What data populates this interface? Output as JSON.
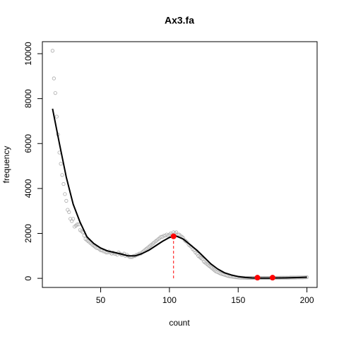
{
  "chart_data": {
    "type": "scatter",
    "title": "Ax3.fa",
    "xlabel": "count",
    "ylabel": "frequency",
    "xlim": [
      7.6,
      207.4
    ],
    "ylim": [
      -405,
      10535
    ],
    "xticks": [
      50,
      100,
      150,
      200
    ],
    "yticks": [
      0,
      2000,
      4000,
      6000,
      8000,
      10000
    ],
    "points": {
      "color": "#aaaaaa",
      "x": [
        15,
        16,
        17,
        18,
        19,
        20,
        21,
        22,
        23,
        24,
        25,
        26,
        27,
        28,
        29,
        30,
        31,
        32,
        33,
        34,
        35,
        36,
        37,
        38,
        39,
        40,
        41,
        42,
        43,
        44,
        45,
        46,
        47,
        48,
        49,
        50,
        51,
        52,
        53,
        54,
        55,
        56,
        57,
        58,
        59,
        60,
        61,
        62,
        63,
        64,
        65,
        66,
        67,
        68,
        69,
        70,
        71,
        72,
        73,
        74,
        75,
        76,
        77,
        78,
        79,
        80,
        81,
        82,
        83,
        84,
        85,
        86,
        87,
        88,
        89,
        90,
        91,
        92,
        93,
        94,
        95,
        96,
        97,
        98,
        99,
        100,
        101,
        102,
        103,
        104,
        105,
        106,
        107,
        108,
        109,
        110,
        111,
        112,
        113,
        114,
        115,
        116,
        117,
        118,
        119,
        120,
        121,
        122,
        123,
        124,
        125,
        126,
        127,
        128,
        129,
        130,
        131,
        132,
        133,
        134,
        135,
        136,
        137,
        138,
        139,
        140,
        141,
        142,
        143,
        144,
        145,
        146,
        147,
        148,
        149,
        150,
        151,
        152,
        153,
        154,
        155,
        156,
        157,
        158,
        159,
        160,
        161,
        162,
        163,
        164,
        165,
        166,
        167,
        168,
        169,
        170,
        171,
        172,
        173,
        174,
        175,
        176,
        177,
        178,
        179,
        180,
        181,
        182,
        183,
        184,
        185,
        186,
        187,
        188,
        189,
        190,
        191,
        192,
        193,
        194,
        195,
        196,
        197,
        198,
        199,
        200
      ],
      "y": [
        10130,
        8900,
        8250,
        7200,
        6400,
        5600,
        5100,
        4600,
        4200,
        3750,
        3450,
        3050,
        2950,
        2650,
        2550,
        2650,
        2300,
        2350,
        2400,
        2400,
        2150,
        2100,
        2050,
        1900,
        1750,
        1700,
        1650,
        1600,
        1550,
        1500,
        1450,
        1400,
        1350,
        1350,
        1300,
        1250,
        1250,
        1200,
        1200,
        1150,
        1150,
        1200,
        1150,
        1100,
        1150,
        1100,
        1100,
        1050,
        1150,
        1100,
        1050,
        1050,
        1100,
        1000,
        1050,
        1000,
        950,
        950,
        950,
        1000,
        1000,
        1050,
        1050,
        1100,
        1100,
        1150,
        1200,
        1250,
        1300,
        1350,
        1400,
        1450,
        1500,
        1550,
        1600,
        1650,
        1700,
        1750,
        1800,
        1850,
        1850,
        1900,
        1900,
        1950,
        1900,
        1950,
        2000,
        1950,
        2050,
        2000,
        2050,
        1950,
        1950,
        1900,
        1850,
        1800,
        1700,
        1650,
        1600,
        1500,
        1450,
        1400,
        1300,
        1250,
        1150,
        1100,
        1000,
        950,
        900,
        850,
        750,
        700,
        650,
        600,
        550,
        500,
        450,
        400,
        350,
        300,
        280,
        250,
        220,
        200,
        180,
        160,
        140,
        120,
        100,
        90,
        80,
        70,
        60,
        50,
        45,
        40,
        35,
        30,
        30,
        25,
        25,
        20,
        20,
        20,
        20,
        20,
        20,
        20,
        20,
        20,
        20,
        20,
        20,
        20,
        20,
        20,
        20,
        20,
        20,
        20,
        25,
        25,
        25,
        25,
        25,
        25,
        30,
        30,
        30,
        30,
        30,
        30,
        30,
        35,
        35,
        35,
        35,
        35,
        40,
        40,
        40,
        40,
        40,
        45,
        45,
        50
      ]
    },
    "curve": {
      "color": "#000000",
      "x": [
        15,
        20,
        25,
        30,
        35,
        40,
        45,
        50,
        55,
        60,
        65,
        70,
        75,
        80,
        85,
        90,
        95,
        100,
        103,
        105,
        110,
        115,
        120,
        125,
        130,
        135,
        140,
        145,
        150,
        155,
        160,
        165,
        170,
        175,
        180,
        185,
        190,
        195,
        200
      ],
      "y": [
        7550,
        6000,
        4500,
        3300,
        2500,
        1850,
        1550,
        1350,
        1220,
        1150,
        1080,
        1000,
        1000,
        1100,
        1250,
        1450,
        1650,
        1820,
        1870,
        1880,
        1750,
        1500,
        1250,
        950,
        650,
        420,
        250,
        150,
        80,
        40,
        20,
        10,
        10,
        15,
        20,
        25,
        30,
        40,
        50
      ]
    },
    "peaks": {
      "color": "#ff0000",
      "x": [
        103,
        164,
        175
      ],
      "y": [
        1870,
        30,
        30
      ]
    }
  }
}
